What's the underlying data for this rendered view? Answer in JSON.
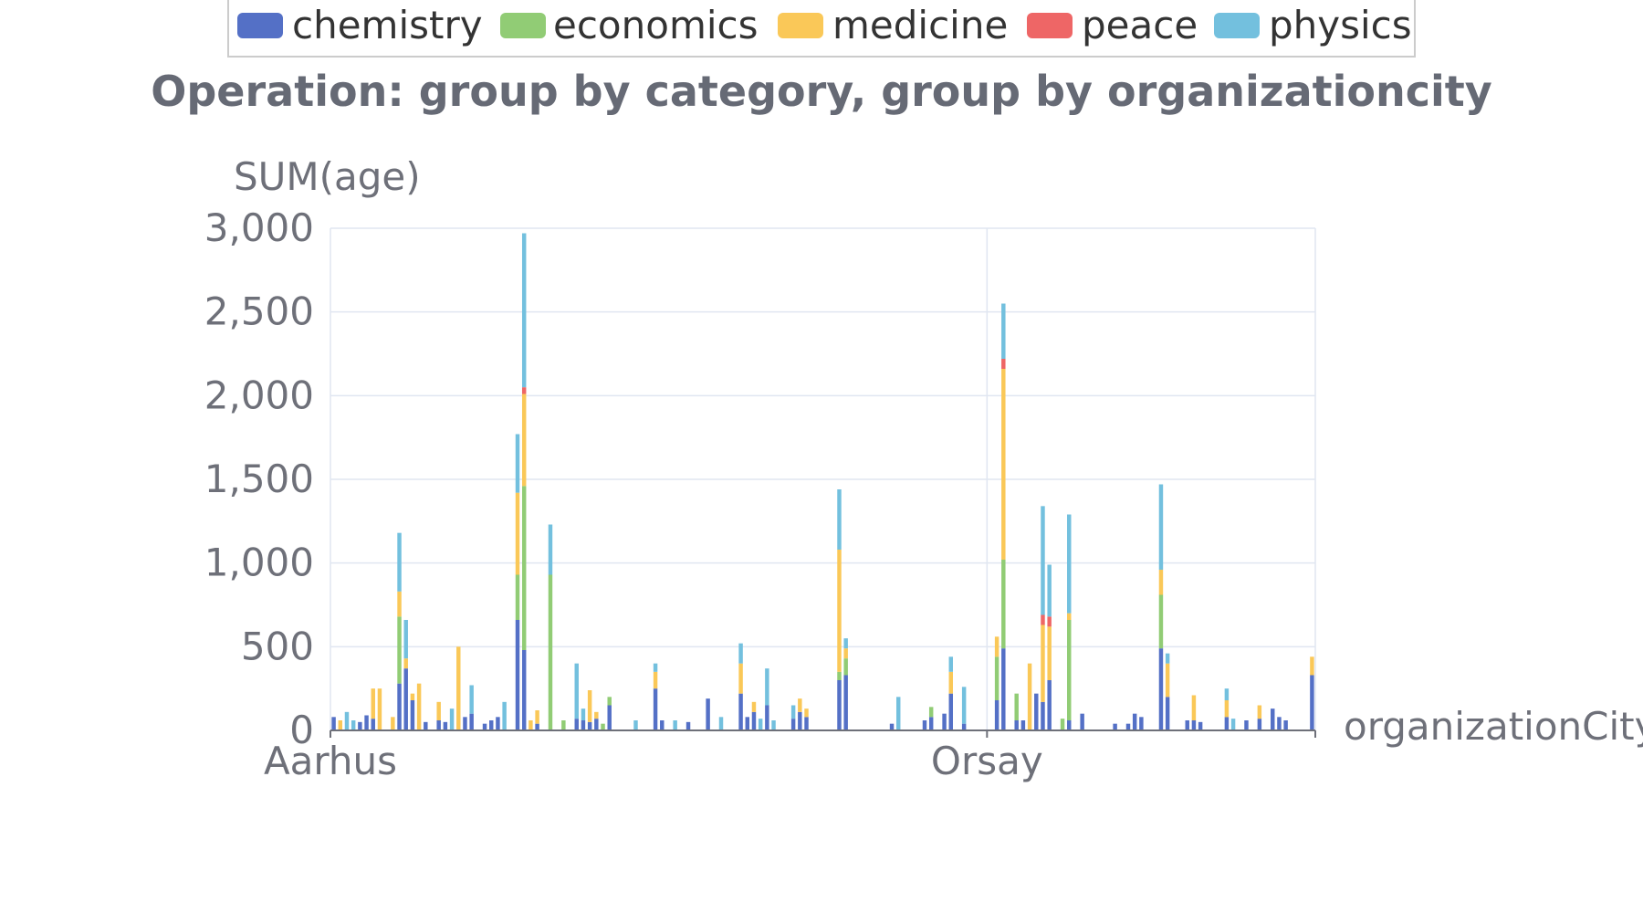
{
  "chart_data": {
    "type": "bar",
    "stacked": true,
    "title": "Operation: group by category, group by organizationcity",
    "xlabel": "organizationCity",
    "ylabel": "SUM(age)",
    "ylim": [
      0,
      3000
    ],
    "yticks": [
      0,
      500,
      1000,
      1500,
      2000,
      2500,
      3000
    ],
    "x_tick_labels": [
      "Aarhus",
      "Orsay"
    ],
    "x_tick_positions": [
      0,
      100
    ],
    "category_count": 150,
    "grid": true,
    "legend_position": "top-center",
    "series": [
      {
        "name": "chemistry",
        "color": "#5470c6",
        "values": [
          80,
          0,
          0,
          0,
          50,
          90,
          70,
          0,
          0,
          0,
          280,
          370,
          180,
          0,
          50,
          0,
          60,
          50,
          0,
          0,
          80,
          100,
          0,
          40,
          60,
          80,
          0,
          0,
          660,
          480,
          0,
          40,
          0,
          0,
          0,
          0,
          0,
          70,
          60,
          50,
          70,
          0,
          150,
          0,
          0,
          0,
          0,
          0,
          0,
          250,
          60,
          0,
          0,
          0,
          50,
          0,
          0,
          190,
          0,
          0,
          0,
          0,
          220,
          80,
          110,
          0,
          150,
          0,
          0,
          0,
          70,
          110,
          80,
          0,
          0,
          0,
          0,
          300,
          330,
          0,
          0,
          0,
          0,
          0,
          0,
          40,
          0,
          0,
          0,
          0,
          60,
          80,
          0,
          100,
          220,
          0,
          40,
          0,
          0,
          0,
          0,
          180,
          490,
          0,
          60,
          60,
          0,
          220,
          170,
          300,
          0,
          0,
          60,
          0,
          100,
          0,
          0,
          0,
          0,
          40,
          0,
          40,
          100,
          80,
          0,
          0,
          490,
          200,
          0,
          0,
          60,
          60,
          50,
          0,
          0,
          0,
          80,
          0,
          0,
          60,
          0,
          70,
          0,
          130,
          80,
          60,
          0,
          0,
          0,
          330
        ]
      },
      {
        "name": "economics",
        "color": "#91cc75",
        "values": [
          0,
          0,
          0,
          0,
          0,
          0,
          0,
          0,
          0,
          0,
          400,
          0,
          0,
          0,
          0,
          0,
          0,
          0,
          0,
          0,
          0,
          0,
          0,
          0,
          0,
          0,
          0,
          0,
          270,
          980,
          0,
          0,
          0,
          930,
          0,
          60,
          0,
          0,
          0,
          0,
          0,
          40,
          50,
          0,
          0,
          0,
          0,
          0,
          0,
          0,
          0,
          0,
          0,
          0,
          0,
          0,
          0,
          0,
          0,
          0,
          0,
          0,
          0,
          0,
          0,
          0,
          0,
          0,
          0,
          0,
          0,
          0,
          0,
          0,
          0,
          0,
          0,
          50,
          100,
          0,
          0,
          0,
          0,
          0,
          0,
          0,
          0,
          0,
          0,
          0,
          0,
          60,
          0,
          0,
          0,
          0,
          0,
          0,
          0,
          0,
          0,
          260,
          530,
          0,
          160,
          0,
          0,
          0,
          0,
          0,
          0,
          70,
          600,
          0,
          0,
          0,
          0,
          0,
          0,
          0,
          0,
          0,
          0,
          0,
          0,
          0,
          320,
          0,
          0,
          0,
          0,
          0,
          0,
          0,
          0,
          0,
          0,
          0,
          0,
          0,
          0,
          0,
          0,
          0,
          0,
          0,
          0,
          0,
          0,
          0
        ]
      },
      {
        "name": "medicine",
        "color": "#fac858",
        "values": [
          0,
          60,
          0,
          0,
          0,
          0,
          180,
          250,
          0,
          80,
          150,
          60,
          40,
          280,
          0,
          0,
          110,
          0,
          0,
          500,
          0,
          0,
          0,
          0,
          0,
          0,
          0,
          0,
          490,
          550,
          60,
          80,
          0,
          0,
          0,
          0,
          0,
          0,
          0,
          190,
          40,
          0,
          0,
          0,
          0,
          0,
          0,
          0,
          0,
          100,
          0,
          0,
          0,
          0,
          0,
          0,
          0,
          0,
          0,
          0,
          0,
          0,
          180,
          0,
          60,
          0,
          0,
          0,
          0,
          0,
          0,
          80,
          50,
          0,
          0,
          0,
          0,
          730,
          60,
          0,
          0,
          0,
          0,
          0,
          0,
          0,
          0,
          0,
          0,
          0,
          0,
          0,
          0,
          0,
          130,
          0,
          0,
          0,
          0,
          0,
          0,
          120,
          1140,
          0,
          0,
          0,
          400,
          0,
          460,
          320,
          0,
          0,
          40,
          0,
          0,
          0,
          0,
          0,
          0,
          0,
          0,
          0,
          0,
          0,
          0,
          0,
          150,
          200,
          0,
          0,
          0,
          150,
          0,
          0,
          0,
          0,
          100,
          0,
          0,
          0,
          0,
          80,
          0,
          0,
          0,
          0,
          0,
          0,
          0,
          110
        ]
      },
      {
        "name": "peace",
        "color": "#ee6666",
        "values": [
          0,
          0,
          0,
          0,
          0,
          0,
          0,
          0,
          0,
          0,
          0,
          0,
          0,
          0,
          0,
          0,
          0,
          0,
          0,
          0,
          0,
          0,
          0,
          0,
          0,
          0,
          0,
          0,
          0,
          40,
          0,
          0,
          0,
          0,
          0,
          0,
          0,
          0,
          0,
          0,
          0,
          0,
          0,
          0,
          0,
          0,
          0,
          0,
          0,
          0,
          0,
          0,
          0,
          0,
          0,
          0,
          0,
          0,
          0,
          0,
          0,
          0,
          0,
          0,
          0,
          0,
          0,
          0,
          0,
          0,
          0,
          0,
          0,
          0,
          0,
          0,
          0,
          0,
          0,
          0,
          0,
          0,
          0,
          0,
          0,
          0,
          0,
          0,
          0,
          0,
          0,
          0,
          0,
          0,
          0,
          0,
          0,
          0,
          0,
          0,
          0,
          0,
          60,
          0,
          0,
          0,
          0,
          0,
          60,
          60,
          0,
          0,
          0,
          0,
          0,
          0,
          0,
          0,
          0,
          0,
          0,
          0,
          0,
          0,
          0,
          0,
          0,
          0,
          0,
          0,
          0,
          0,
          0,
          0,
          0,
          0,
          0,
          0,
          0,
          0,
          0,
          0,
          0,
          0,
          0,
          0,
          0,
          0,
          0,
          0
        ]
      },
      {
        "name": "physics",
        "color": "#73c0de",
        "values": [
          0,
          0,
          110,
          60,
          0,
          0,
          0,
          0,
          0,
          0,
          350,
          230,
          0,
          0,
          0,
          0,
          0,
          0,
          130,
          0,
          0,
          170,
          0,
          0,
          0,
          0,
          170,
          0,
          350,
          920,
          0,
          0,
          0,
          300,
          0,
          0,
          0,
          330,
          70,
          0,
          0,
          0,
          0,
          0,
          0,
          0,
          60,
          0,
          0,
          50,
          0,
          0,
          60,
          0,
          0,
          0,
          0,
          0,
          0,
          80,
          0,
          0,
          120,
          0,
          0,
          70,
          220,
          60,
          0,
          0,
          80,
          0,
          0,
          0,
          0,
          0,
          0,
          360,
          60,
          0,
          0,
          0,
          0,
          0,
          0,
          0,
          200,
          0,
          0,
          0,
          0,
          0,
          0,
          0,
          90,
          0,
          220,
          0,
          0,
          0,
          0,
          0,
          330,
          0,
          0,
          0,
          0,
          0,
          650,
          310,
          0,
          0,
          590,
          0,
          0,
          0,
          0,
          0,
          0,
          0,
          0,
          0,
          0,
          0,
          0,
          0,
          510,
          60,
          0,
          0,
          0,
          0,
          0,
          0,
          0,
          0,
          70,
          70,
          0,
          0,
          0,
          0,
          0,
          0,
          0,
          0,
          0,
          0,
          0,
          0
        ]
      }
    ]
  }
}
